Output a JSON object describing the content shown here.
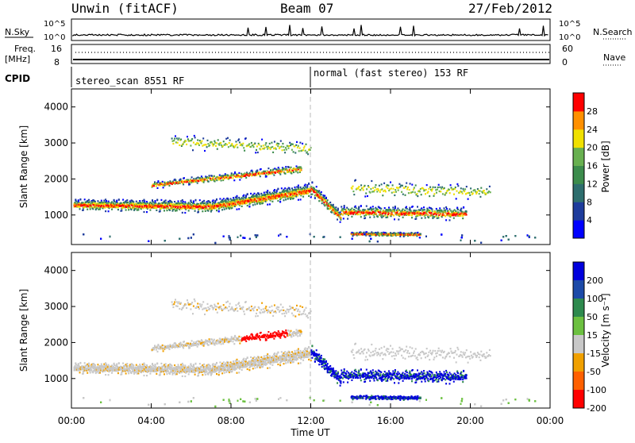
{
  "header": {
    "station": "Unwin (fitACF)",
    "beam": "Beam 07",
    "date": "27/Feb/2012"
  },
  "noise_panel": {
    "left_label": "N.Sky",
    "right_label": "N.Search",
    "tick_top": "10^5",
    "tick_bottom": "10^0"
  },
  "freq_panel": {
    "left_label_1": "Freq.",
    "left_label_2": "[MHz]",
    "right_label": "Nave",
    "left_ticks": [
      "16",
      "8"
    ],
    "right_ticks": [
      "60",
      "0"
    ]
  },
  "cpid": {
    "label": "CPID",
    "mode_1": "stereo_scan 8551 RF",
    "mode_2": "normal (fast stereo) 153 RF"
  },
  "chart_data": [
    {
      "type": "heatmap",
      "title": "",
      "xlabel": "Time UT",
      "ylabel": "Slant Range [km]",
      "x_ticks": [
        "00:00",
        "04:00",
        "08:00",
        "12:00",
        "16:00",
        "20:00",
        "00:00"
      ],
      "xlim_hours": [
        0,
        24
      ],
      "ylim": [
        180,
        4500
      ],
      "y_ticks": [
        1000,
        2000,
        3000,
        4000
      ],
      "colorbar_label": "Power [dB]",
      "colorbar_ticks": [
        "4",
        "8",
        "12",
        "16",
        "20",
        "24",
        "28"
      ],
      "colorbar_range": [
        0,
        30
      ],
      "mode_change_hour": 12,
      "colors": [
        "#0000ff",
        "#1e3c9c",
        "#2e6e6e",
        "#3c8c4c",
        "#68b050",
        "#f0e000",
        "#ff9000",
        "#ff0000"
      ]
    },
    {
      "type": "heatmap",
      "title": "",
      "xlabel": "Time UT",
      "ylabel": "Slant Range [km]",
      "x_ticks": [
        "00:00",
        "04:00",
        "08:00",
        "12:00",
        "16:00",
        "20:00",
        "00:00"
      ],
      "xlim_hours": [
        0,
        24
      ],
      "ylim": [
        180,
        4500
      ],
      "y_ticks": [
        1000,
        2000,
        3000,
        4000
      ],
      "colorbar_label": "Velocity [m s⁻¹]",
      "colorbar_ticks": [
        "200",
        "100",
        "50",
        "15",
        "-15",
        "-50",
        "-100",
        "-200"
      ],
      "colorbar_range": [
        -250,
        250
      ],
      "colors": [
        "#0000dd",
        "#1c4aa8",
        "#2e8a4e",
        "#6cc040",
        "#c8c8c8",
        "#f0a000",
        "#ff6000",
        "#ff0000"
      ]
    }
  ]
}
